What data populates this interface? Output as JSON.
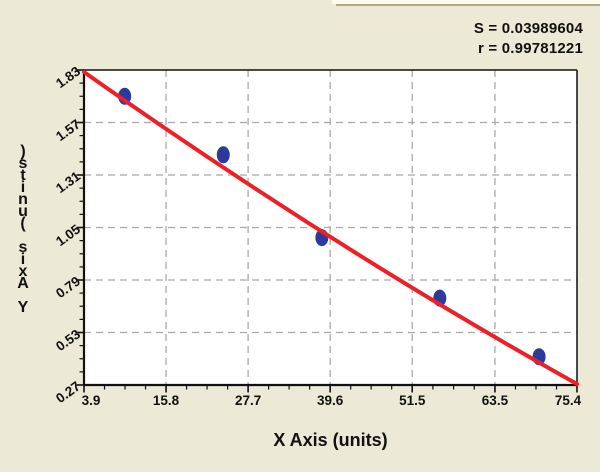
{
  "stats": {
    "s": "S = 0.03989604",
    "r": "r = 0.99781221"
  },
  "chart_data": {
    "type": "scatter",
    "title": "",
    "xlabel": "X Axis (units)",
    "ylabel": "Y Axis (units)",
    "xlim": [
      3.9,
      75.4
    ],
    "ylim": [
      0.27,
      1.83
    ],
    "x_ticks": {
      "values": [
        3.9,
        15.8,
        27.7,
        39.6,
        51.5,
        63.5,
        75.4
      ],
      "labels": [
        "3.9",
        "15.8",
        "27.7",
        "39.6",
        "51.5",
        "63.5",
        "75.4"
      ]
    },
    "y_ticks": {
      "values": [
        1.83,
        1.57,
        1.31,
        1.05,
        0.79,
        0.53,
        0.27
      ],
      "labels": [
        "1.83",
        "1.57",
        "1.31",
        "1.05",
        "0.79",
        "0.53",
        "0.27"
      ]
    },
    "minor_ticks_per_interval": 3,
    "grid": {
      "show": true,
      "style": "dashed"
    },
    "legend": "none",
    "series": [
      {
        "name": "standard-points",
        "type": "scatter",
        "marker": "ellipse",
        "points": [
          {
            "x": 9.8,
            "y": 1.7
          },
          {
            "x": 24.1,
            "y": 1.41
          },
          {
            "x": 38.4,
            "y": 1.0
          },
          {
            "x": 55.5,
            "y": 0.7
          },
          {
            "x": 69.9,
            "y": 0.41
          }
        ]
      },
      {
        "name": "fit-line",
        "type": "curve",
        "start": {
          "x": 3.9,
          "y": 1.82
        },
        "control": {
          "x": 39.8,
          "y": 0.955
        },
        "end": {
          "x": 75.4,
          "y": 0.275
        }
      }
    ],
    "annotations": [
      "S = 0.03989604",
      "r = 0.99781221"
    ],
    "fit_stats": {
      "S": "0.03989604",
      "r": "0.99781221"
    }
  },
  "colors": {
    "background": "#ece9d6",
    "plot_background": "#ffffff",
    "grid": "#a8a8a8",
    "axis": "#111111",
    "fit_line": "#ec2127",
    "marker": "#2c3a9e",
    "text": "#111111"
  }
}
